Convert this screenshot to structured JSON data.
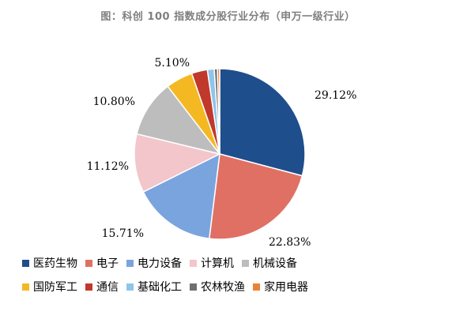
{
  "chart_data": {
    "type": "pie",
    "title": "图：科创 100 指数成分股行业分布（申万一级行业）",
    "slices": [
      {
        "name": "医药生物",
        "value": 29.12,
        "label": "29.12%",
        "color": "#1f4e8c"
      },
      {
        "name": "电子",
        "value": 22.83,
        "label": "22.83%",
        "color": "#e07064"
      },
      {
        "name": "电力设备",
        "value": 15.71,
        "label": "15.71%",
        "color": "#7aa4de"
      },
      {
        "name": "计算机",
        "value": 11.12,
        "label": "11.12%",
        "color": "#f2c6cb"
      },
      {
        "name": "机械设备",
        "value": 10.8,
        "label": "10.80%",
        "color": "#bdbdbd"
      },
      {
        "name": "国防军工",
        "value": 5.1,
        "label": "5.10%",
        "color": "#f4b823"
      },
      {
        "name": "通信",
        "value": 3.0,
        "label": "",
        "color": "#c0392b"
      },
      {
        "name": "基础化工",
        "value": 1.3,
        "label": "",
        "color": "#8fc5ea"
      },
      {
        "name": "农林牧渔",
        "value": 0.6,
        "label": "",
        "color": "#6f6f6f"
      },
      {
        "name": "家用电器",
        "value": 0.42,
        "label": "",
        "color": "#e8833a"
      }
    ],
    "legend_placement": "bottom"
  }
}
